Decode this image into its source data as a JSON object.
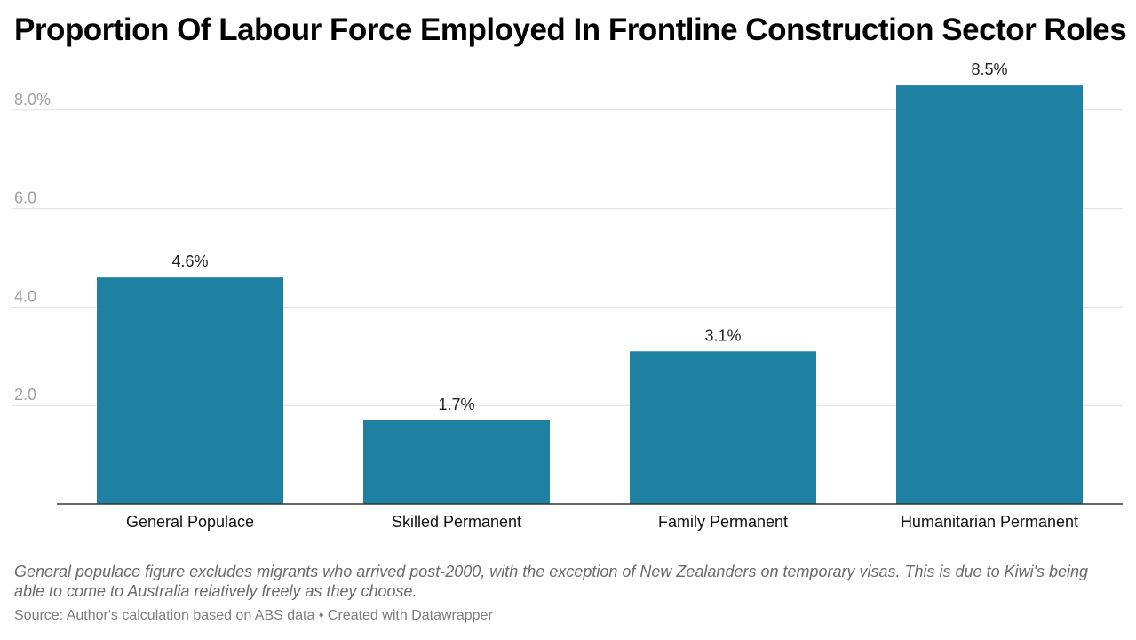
{
  "title": "Proportion Of Labour Force Employed In Frontline Construction Sector Roles",
  "notes": "General populace figure excludes migrants who arrived post-2000, with the exception of New Zealanders on temporary visas. This is due to Kiwi's being able to come to Australia relatively freely as they choose.",
  "source": {
    "label": "Source: Author's calculation based on ABS data",
    "separator": "•",
    "credit": "Created with Datawrapper"
  },
  "colors": {
    "bar": "#1f81a1",
    "grid": "#e0e0e0",
    "axis_tick": "#a0a0a0",
    "baseline": "#333333"
  },
  "chart_data": {
    "type": "bar",
    "title": "Proportion Of Labour Force Employed In Frontline Construction Sector Roles",
    "categories": [
      "General Populace",
      "Skilled Permanent",
      "Family Permanent",
      "Humanitarian Permanent"
    ],
    "values": [
      4.6,
      1.7,
      3.1,
      8.5
    ],
    "value_labels": [
      "4.6%",
      "1.7%",
      "3.1%",
      "8.5%"
    ],
    "yticks": [
      2.0,
      4.0,
      6.0,
      8.0
    ],
    "ytick_labels": [
      "2.0",
      "4.0",
      "6.0",
      "8.0%"
    ],
    "ylim": [
      0,
      8.7
    ],
    "grid": true,
    "xlabel": "",
    "ylabel": ""
  }
}
